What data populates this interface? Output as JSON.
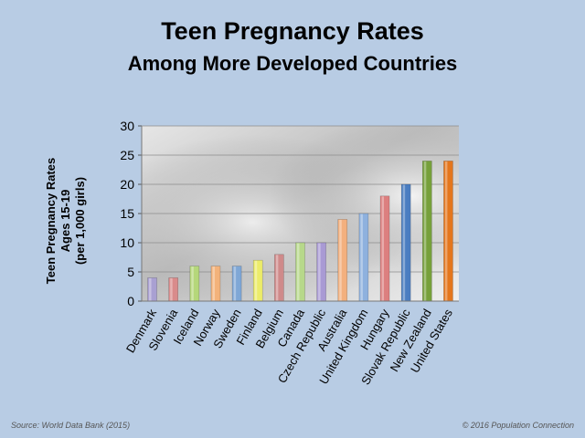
{
  "chart_data": {
    "type": "bar",
    "title": "Teen Pregnancy Rates",
    "subtitle": "Among More Developed Countries",
    "ylabel": [
      "Teen Pregnancy Rates",
      "Ages 15-19",
      "(per 1,000 girls)"
    ],
    "xlabel": "",
    "ylim": [
      0,
      30
    ],
    "yticks": [
      0,
      5,
      10,
      15,
      20,
      25,
      30
    ],
    "grid": true,
    "categories": [
      "Denmark",
      "Slovenia",
      "Iceland",
      "Norway",
      "Sweden",
      "Finland",
      "Belgium",
      "Canada",
      "Czech Republic",
      "Australia",
      "United Kingdom",
      "Hungary",
      "Slovak Republic",
      "New Zealand",
      "United States"
    ],
    "values": [
      4,
      4,
      6,
      6,
      6,
      7,
      8,
      10,
      10,
      14,
      15,
      18,
      20,
      24,
      24
    ],
    "colors": [
      "#a9a0d2",
      "#d98b8b",
      "#b5d77a",
      "#f3b27a",
      "#7fa7d6",
      "#ecec6a",
      "#cf8a8a",
      "#b7d88a",
      "#a99ad4",
      "#f3b07e",
      "#8eb1de",
      "#dc7f7f",
      "#4a7dc1",
      "#76a03a",
      "#e4761c"
    ]
  },
  "footer": {
    "source": "Source: World Data Bank (2015)",
    "copyright": "© 2016 Population Connection"
  }
}
